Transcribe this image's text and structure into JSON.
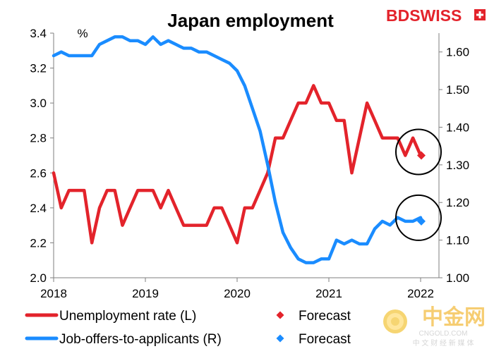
{
  "chart_data": {
    "type": "line",
    "title": "Japan employment",
    "unit_label": "%",
    "brand": {
      "text": "BDSWISS",
      "color": "#e3232b"
    },
    "watermark": {
      "text": "中金网",
      "subtext": "CNGOLD.COM",
      "subline": "中 文 财 经 新 媒 体"
    },
    "x_ticks": [
      "2018",
      "2019",
      "2020",
      "2021",
      "2022"
    ],
    "x_range": [
      2018,
      2022.2
    ],
    "y_left": {
      "range": [
        2.0,
        3.4
      ],
      "ticks": [
        "2.0",
        "2.2",
        "2.4",
        "2.6",
        "2.8",
        "3.0",
        "3.2",
        "3.4"
      ]
    },
    "y_right": {
      "range": [
        1.0,
        1.65
      ],
      "ticks": [
        "1.00",
        "1.10",
        "1.20",
        "1.30",
        "1.40",
        "1.50",
        "1.60"
      ]
    },
    "grid": false,
    "legend_position": "bottom",
    "series": [
      {
        "name": "Unemployment rate (L)",
        "axis": "left",
        "color": "#e3232b",
        "x_start": 2018.0,
        "x_step": 0.08333,
        "values": [
          2.6,
          2.4,
          2.5,
          2.5,
          2.5,
          2.2,
          2.4,
          2.5,
          2.5,
          2.3,
          2.4,
          2.5,
          2.5,
          2.5,
          2.4,
          2.5,
          2.4,
          2.3,
          2.3,
          2.3,
          2.3,
          2.4,
          2.4,
          2.3,
          2.2,
          2.4,
          2.4,
          2.5,
          2.6,
          2.8,
          2.8,
          2.9,
          3.0,
          3.0,
          3.1,
          3.0,
          3.0,
          2.9,
          2.9,
          2.6,
          2.8,
          3.0,
          2.9,
          2.8,
          2.8,
          2.8,
          2.7,
          2.8,
          2.7
        ]
      },
      {
        "name": "Job-offers-to-applicants (R)",
        "axis": "right",
        "color": "#1a8cff",
        "x_start": 2018.0,
        "x_step": 0.08333,
        "values": [
          1.59,
          1.6,
          1.59,
          1.59,
          1.59,
          1.59,
          1.62,
          1.63,
          1.64,
          1.64,
          1.63,
          1.63,
          1.62,
          1.64,
          1.62,
          1.63,
          1.62,
          1.61,
          1.61,
          1.6,
          1.6,
          1.59,
          1.58,
          1.57,
          1.55,
          1.51,
          1.45,
          1.39,
          1.3,
          1.2,
          1.12,
          1.08,
          1.05,
          1.04,
          1.04,
          1.05,
          1.05,
          1.1,
          1.09,
          1.1,
          1.09,
          1.09,
          1.13,
          1.15,
          1.14,
          1.16,
          1.15,
          1.15,
          1.16
        ]
      }
    ],
    "forecasts": [
      {
        "name": "Forecast",
        "axis": "left",
        "x": 2022.0,
        "value": 2.7,
        "color": "#e3232b",
        "marker": "diamond"
      },
      {
        "name": "Forecast",
        "axis": "right",
        "x": 2022.0,
        "value": 1.15,
        "color": "#1a8cff",
        "marker": "diamond"
      }
    ],
    "highlight_circles": true
  }
}
